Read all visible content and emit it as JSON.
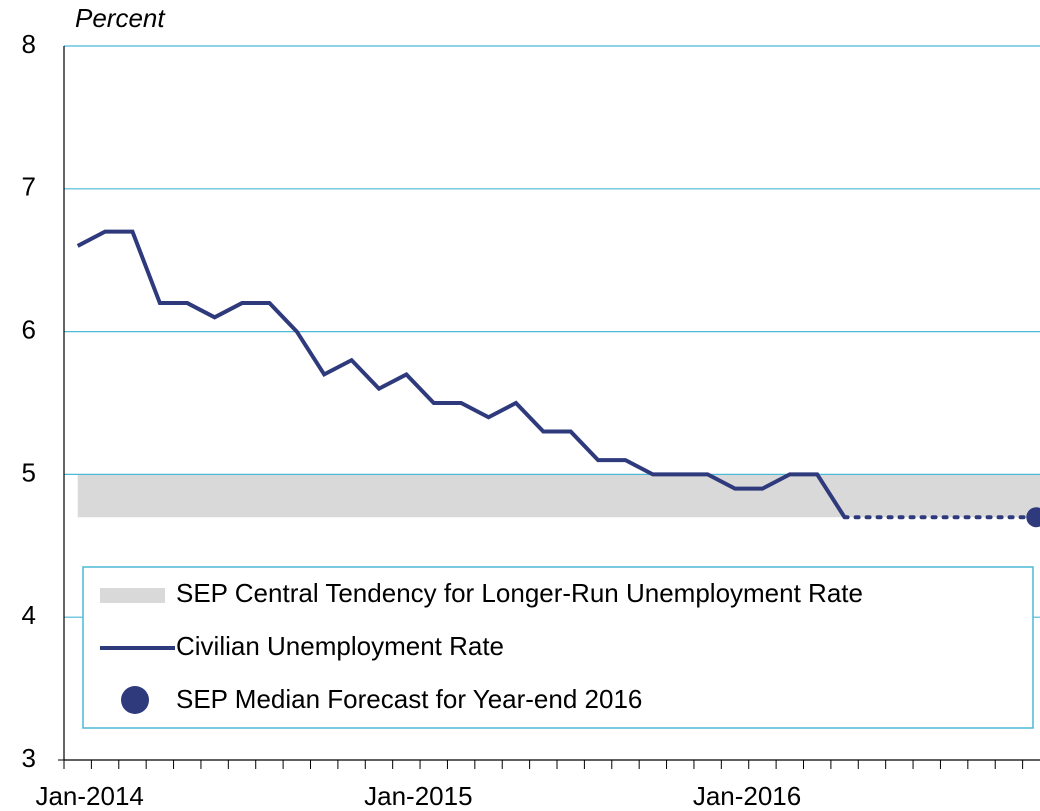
{
  "chart_data": {
    "type": "line",
    "y_axis_label": "Percent",
    "categories": [
      "Jan-2014",
      null,
      null,
      null,
      null,
      null,
      null,
      null,
      null,
      null,
      null,
      null,
      "Jan-2015",
      null,
      null,
      null,
      null,
      null,
      null,
      null,
      null,
      null,
      null,
      null,
      "Jan-2016",
      null,
      null,
      null,
      null,
      null,
      null,
      null,
      null,
      null,
      null,
      null
    ],
    "ylim": [
      3,
      8
    ],
    "yticks": [
      3,
      4,
      5,
      6,
      7,
      8
    ],
    "grid": true,
    "band": {
      "name": "SEP Central Tendency for Longer-Run Unemployment Rate",
      "color": "#d9d9d9",
      "low": 4.7,
      "high": 5.0
    },
    "series": [
      {
        "name": "Civilian Unemployment Rate",
        "color": "#2e3a7c",
        "values": [
          6.6,
          6.7,
          6.7,
          6.2,
          6.2,
          6.1,
          6.2,
          6.2,
          6.0,
          5.7,
          5.8,
          5.6,
          5.7,
          5.5,
          5.5,
          5.4,
          5.5,
          5.3,
          5.3,
          5.1,
          5.1,
          5.0,
          5.0,
          5.0,
          4.9,
          4.9,
          5.0,
          5.0,
          4.7,
          null,
          null,
          null,
          null,
          null,
          null,
          null
        ]
      },
      {
        "name": "SEP Median Forecast for Year-end 2016",
        "color": "#2e3a7c",
        "marker": "circle",
        "values": [
          null,
          null,
          null,
          null,
          null,
          null,
          null,
          null,
          null,
          null,
          null,
          null,
          null,
          null,
          null,
          null,
          null,
          null,
          null,
          null,
          null,
          null,
          null,
          null,
          null,
          null,
          null,
          null,
          null,
          null,
          null,
          null,
          null,
          null,
          null,
          4.7
        ]
      }
    ],
    "legend": "bottom"
  }
}
